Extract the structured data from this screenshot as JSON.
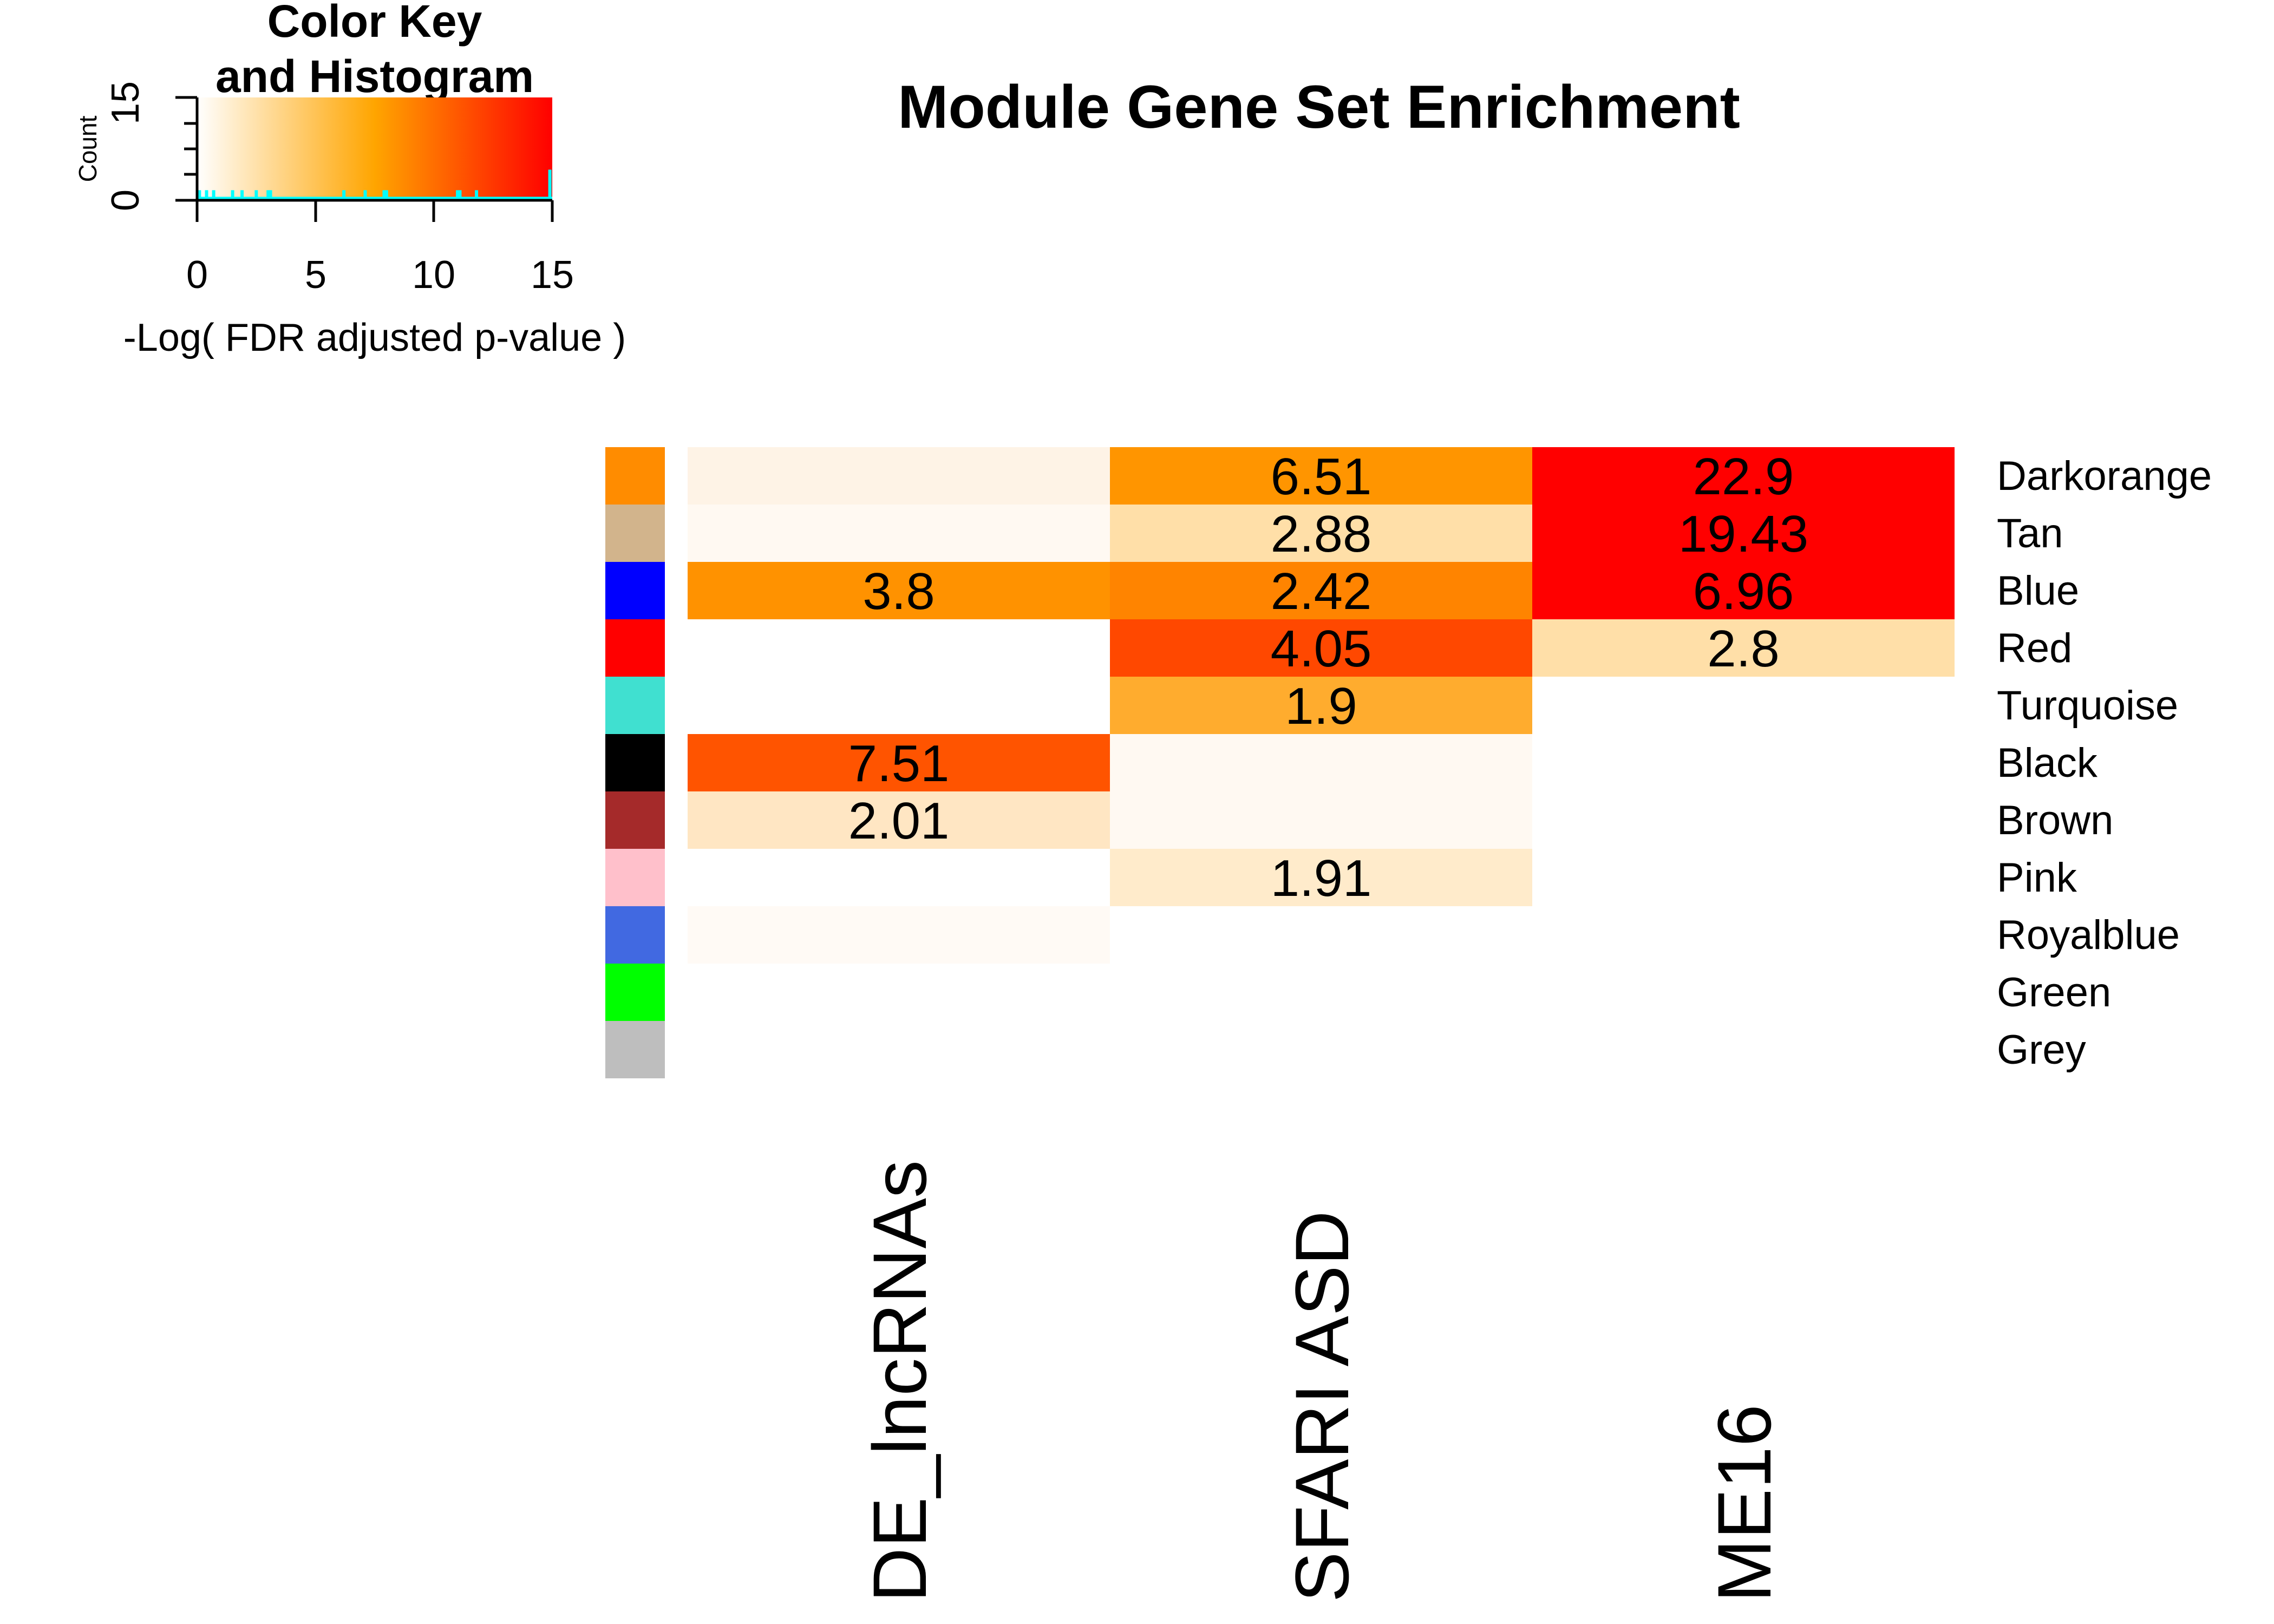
{
  "title": "Module Gene Set Enrichment",
  "color_key": {
    "title_line1": "Color Key",
    "title_line2": "and Histogram",
    "ylabel": "Count",
    "y_ticks": [
      "0",
      "15"
    ],
    "x_ticks": [
      "0",
      "5",
      "10",
      "15"
    ],
    "xlabel": "-Log( FDR adjusted p-value )",
    "scale_colors": [
      "#FFFFFF",
      "#FFA500",
      "#FF0000"
    ],
    "range": [
      0,
      15
    ],
    "histogram_color": "#00FFFF"
  },
  "chart_data": {
    "type": "heatmap",
    "title": "Module Gene Set Enrichment",
    "columns": [
      "DE_lncRNAs",
      "SFARI ASD",
      "ME16"
    ],
    "rows": [
      "Darkorange",
      "Tan",
      "Blue",
      "Red",
      "Turquoise",
      "Black",
      "Brown",
      "Pink",
      "Royalblue",
      "Green",
      "Grey"
    ],
    "row_colors": [
      "#FF8C00",
      "#D2B48C",
      "#0000FF",
      "#FF0000",
      "#40E0D0",
      "#000000",
      "#A52A2A",
      "#FFC0CB",
      "#4169E1",
      "#00FF00",
      "#BEBEBE"
    ],
    "cells": [
      [
        {
          "fill": "#FEF3E6",
          "label": ""
        },
        {
          "fill": "#FF9500",
          "label": "6.51"
        },
        {
          "fill": "#FF0000",
          "label": "22.9"
        }
      ],
      [
        {
          "fill": "#FFF9F2",
          "label": ""
        },
        {
          "fill": "#FFDFA8",
          "label": "2.88"
        },
        {
          "fill": "#FF0000",
          "label": "19.43"
        }
      ],
      [
        {
          "fill": "#FF9200",
          "label": "3.8"
        },
        {
          "fill": "#FF8400",
          "label": "2.42"
        },
        {
          "fill": "#FF0000",
          "label": "6.96"
        }
      ],
      [
        {
          "fill": "#FFFFFF",
          "label": ""
        },
        {
          "fill": "#FF4800",
          "label": "4.05"
        },
        {
          "fill": "#FFDFA8",
          "label": "2.8"
        }
      ],
      [
        {
          "fill": "#FFFFFF",
          "label": ""
        },
        {
          "fill": "#FFAC2E",
          "label": "1.9"
        },
        {
          "fill": "#FFFFFF",
          "label": ""
        }
      ],
      [
        {
          "fill": "#FF5400",
          "label": "7.51"
        },
        {
          "fill": "#FFF9F2",
          "label": ""
        },
        {
          "fill": "#FFFFFF",
          "label": ""
        }
      ],
      [
        {
          "fill": "#FFE6C3",
          "label": "2.01"
        },
        {
          "fill": "#FFF9F2",
          "label": ""
        },
        {
          "fill": "#FFFFFF",
          "label": ""
        }
      ],
      [
        {
          "fill": "#FFFFFF",
          "label": ""
        },
        {
          "fill": "#FFEBCB",
          "label": "1.91"
        },
        {
          "fill": "#FFFFFF",
          "label": ""
        }
      ],
      [
        {
          "fill": "#FFFAF5",
          "label": ""
        },
        {
          "fill": "#FFFFFF",
          "label": ""
        },
        {
          "fill": "#FFFFFF",
          "label": ""
        }
      ],
      [
        {
          "fill": "#FFFFFF",
          "label": ""
        },
        {
          "fill": "#FFFFFF",
          "label": ""
        },
        {
          "fill": "#FFFFFF",
          "label": ""
        }
      ],
      [
        {
          "fill": "#FFFFFF",
          "label": ""
        },
        {
          "fill": "#FFFFFF",
          "label": ""
        },
        {
          "fill": "#FFFFFF",
          "label": ""
        }
      ]
    ],
    "histogram": {
      "bins": [
        0.1,
        0.4,
        0.7,
        1.5,
        1.9,
        2.5,
        3.0,
        3.1,
        6.2,
        7.1,
        7.9,
        8.0,
        11.0,
        11.1,
        11.8,
        14.9
      ],
      "counts": [
        1,
        1,
        1,
        1,
        1,
        1,
        1,
        1,
        1,
        1,
        1,
        1,
        1,
        1,
        1,
        4
      ]
    },
    "grid": false,
    "legend": "top-left"
  }
}
